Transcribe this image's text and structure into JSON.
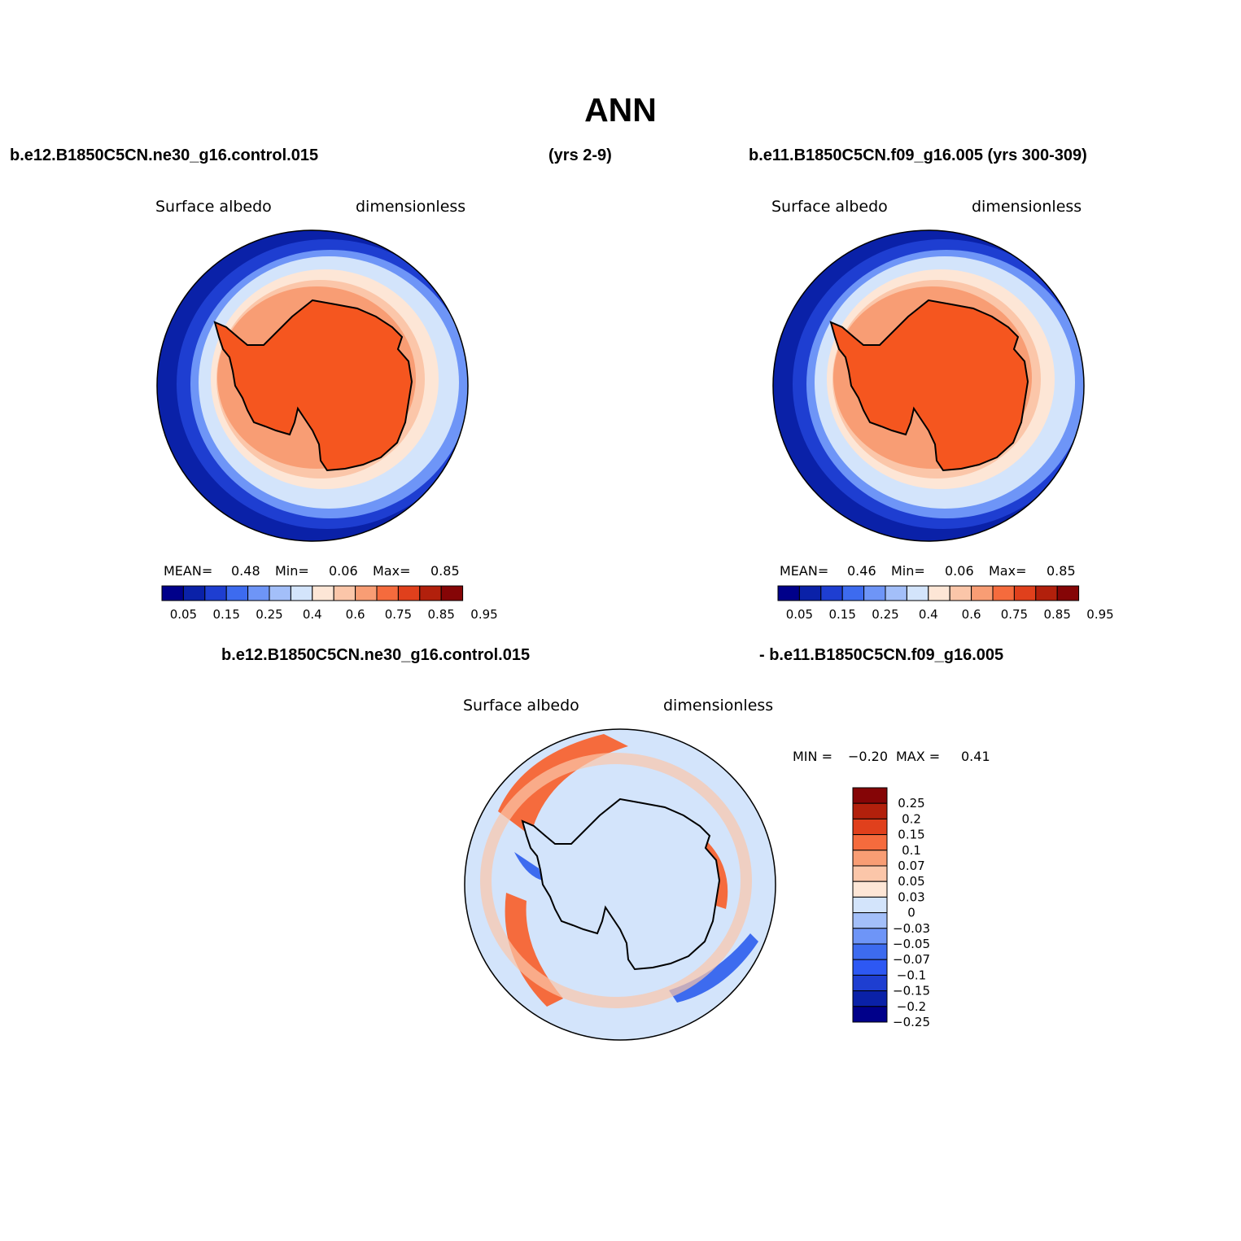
{
  "page": {
    "title": "ANN",
    "left_header": "b.e12.B1850C5CN.ne30_g16.control.015",
    "center_header": "(yrs 2-9)",
    "right_header": "b.e11.B1850C5CN.f09_g16.005 (yrs 300-309)",
    "diff_header_left": "b.e12.B1850C5CN.ne30_g16.control.015",
    "diff_header_right": "- b.e11.B1850C5CN.f09_g16.005"
  },
  "panels": [
    {
      "variable": "Surface albedo",
      "units": "dimensionless",
      "stats": {
        "mean_label": "MEAN=",
        "mean": "0.48",
        "min_label": "Min=",
        "min": "0.06",
        "max_label": "Max=",
        "max": "0.85"
      }
    },
    {
      "variable": "Surface albedo",
      "units": "dimensionless",
      "stats": {
        "mean_label": "MEAN=",
        "mean": "0.46",
        "min_label": "Min=",
        "min": "0.06",
        "max_label": "Max=",
        "max": "0.85"
      }
    }
  ],
  "diff_panel": {
    "variable": "Surface albedo",
    "units": "dimensionless",
    "min_label": "MIN =",
    "min": "−0.20",
    "max_label": "MAX =",
    "max": "0.41"
  },
  "colorbar_main": {
    "colors": [
      "#00008a",
      "#0a21a8",
      "#1e3ed1",
      "#3d6bef",
      "#6e95f7",
      "#a3bff9",
      "#d3e4fb",
      "#fde6d6",
      "#fbc6a9",
      "#f89d74",
      "#f56b3d",
      "#e0401c",
      "#b2200c",
      "#850506"
    ],
    "labels": [
      "0.05",
      "0.15",
      "0.25",
      "0.4",
      "0.6",
      "0.75",
      "0.85",
      "0.95"
    ]
  },
  "colorbar_diff": {
    "colors": [
      "#00008a",
      "#0a21a8",
      "#1e3ed1",
      "#2d58f3",
      "#3d6bef",
      "#6e95f7",
      "#a3bff9",
      "#d3e4fb",
      "#fde6d6",
      "#fbc6a9",
      "#f89d74",
      "#f56b3d",
      "#e0401c",
      "#b2200c",
      "#850506"
    ],
    "labels": [
      "0.25",
      "0.2",
      "0.15",
      "0.1",
      "0.07",
      "0.05",
      "0.03",
      "0",
      "−0.03",
      "−0.05",
      "−0.07",
      "−0.1",
      "−0.15",
      "−0.2",
      "−0.25"
    ]
  },
  "map_colors": {
    "ocean_deep": "#0a21a8",
    "ocean_mid": "#1e3ed1",
    "ocean_light": "#6e95f7",
    "ocean_pale": "#d3e4fb",
    "ring_peach": "#fde6d6",
    "ring_salmon": "#fbc6a9",
    "ring_orange": "#f89d74",
    "continent": "#f5561f",
    "diff_base": "#d3e4fb",
    "diff_pos": "#f56b3d",
    "diff_pos_light": "#fbc6a9",
    "diff_neg": "#3d6bef"
  }
}
